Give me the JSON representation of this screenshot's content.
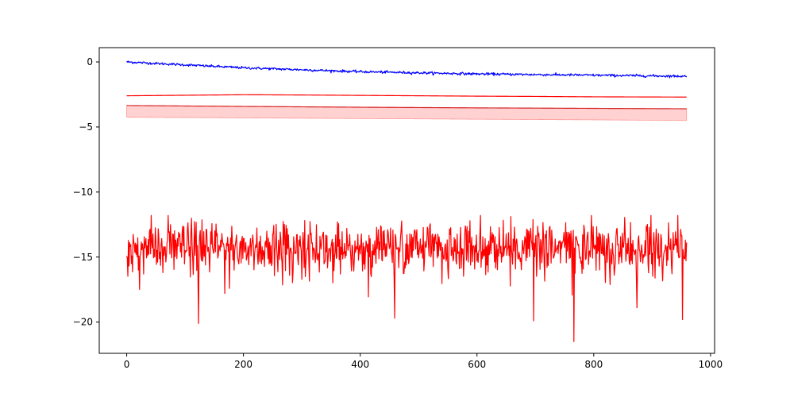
{
  "chart_data": {
    "type": "line",
    "title": "",
    "xlabel": "",
    "ylabel": "",
    "xlim": [
      -47,
      1007
    ],
    "ylim": [
      -22.4,
      1.1
    ],
    "x_ticks": [
      0,
      200,
      400,
      600,
      800,
      1000
    ],
    "y_ticks": [
      0,
      -5,
      -10,
      -15,
      -20
    ],
    "grid": false,
    "legend": "none",
    "n_points": 960,
    "series": [
      {
        "color": "#0000ff",
        "style": "noisy decaying line",
        "trend": {
          "x": [
            0,
            200,
            400,
            600,
            800,
            959
          ],
          "y": [
            0.0,
            -0.45,
            -0.75,
            -0.92,
            -1.02,
            -1.1
          ]
        },
        "noise_amplitude": 0.08
      },
      {
        "color": "#ff0000",
        "style": "smooth line",
        "x": [
          0,
          100,
          200,
          300,
          400,
          500,
          600,
          700,
          800,
          959
        ],
        "y": [
          -2.6,
          -2.56,
          -2.52,
          -2.54,
          -2.57,
          -2.6,
          -2.63,
          -2.65,
          -2.68,
          -2.7
        ]
      },
      {
        "color": "#d62728",
        "style": "mean line with band",
        "x": [
          0,
          200,
          400,
          600,
          800,
          959
        ],
        "y": [
          -3.35,
          -3.42,
          -3.48,
          -3.53,
          -3.57,
          -3.6
        ],
        "band_lower": [
          -4.25,
          -4.3,
          -4.35,
          -4.4,
          -4.45,
          -4.5
        ],
        "band_upper": [
          -3.35,
          -3.42,
          -3.48,
          -3.53,
          -3.57,
          -3.6
        ],
        "band_color": "#ffcccc"
      },
      {
        "color": "#ff0000",
        "style": "noisy line",
        "mean": -14.3,
        "noise_amplitude": 1.3,
        "range": [
          -21.5,
          -11.8
        ],
        "notable_points": [
          {
            "x": 123,
            "y": -20.1
          },
          {
            "x": 459,
            "y": -19.7
          },
          {
            "x": 697,
            "y": -19.9
          },
          {
            "x": 766,
            "y": -21.5
          },
          {
            "x": 874,
            "y": -18.9
          },
          {
            "x": 952,
            "y": -19.8
          }
        ]
      }
    ]
  }
}
